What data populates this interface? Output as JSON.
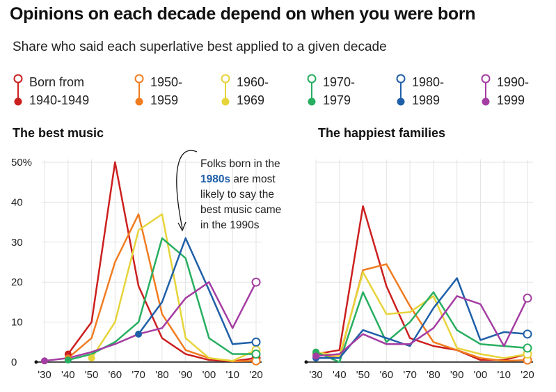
{
  "title": "Opinions on each decade depend on when you were born",
  "subtitle": "Share who said each superlative best applied to a given decade",
  "legend": [
    {
      "label": "Born from\n1940-1949",
      "color": "#cc1f1f"
    },
    {
      "label": "1950-\n1959",
      "color": "#f07c21"
    },
    {
      "label": "1960-\n1969",
      "color": "#e6d43a"
    },
    {
      "label": "1970-\n1979",
      "color": "#27ae60"
    },
    {
      "label": "1980-\n1989",
      "color": "#1f5fa8"
    },
    {
      "label": "1990-\n1999",
      "color": "#a43da3"
    }
  ],
  "annotation": {
    "line1": "Folks born in the",
    "highlight": "1980s",
    "line2_rest": " are most",
    "line3": "likely to say the",
    "line4": "best music came",
    "line5": "in the 1990s"
  },
  "chart_data": [
    {
      "type": "line",
      "title": "The best music",
      "x": [
        "'30",
        "'40",
        "'50",
        "'60",
        "'70",
        "'80",
        "'90",
        "'00",
        "'10",
        "'20"
      ],
      "y_ticks": [
        "50%",
        "40",
        "30",
        "20",
        "10",
        "0"
      ],
      "ylim": [
        0,
        50
      ],
      "series": [
        {
          "name": "Born from 1940-1949",
          "values": [
            null,
            2,
            10,
            50,
            19,
            6,
            2,
            0.5,
            0.2,
            1
          ]
        },
        {
          "name": "1950-1959",
          "values": [
            null,
            1,
            6,
            25,
            37,
            12,
            3,
            1,
            0.2,
            0.3
          ]
        },
        {
          "name": "1960-1969",
          "values": [
            null,
            null,
            1,
            10,
            33,
            37,
            6,
            1,
            0.3,
            3
          ]
        },
        {
          "name": "1970-1979",
          "values": [
            null,
            0.5,
            2,
            5,
            10,
            31,
            26,
            6,
            2,
            2
          ]
        },
        {
          "name": "1980-1989",
          "values": [
            null,
            null,
            null,
            null,
            7,
            15,
            31,
            18,
            4.5,
            5
          ]
        },
        {
          "name": "1990-1999",
          "values": [
            0.3,
            1,
            2.5,
            4.5,
            7,
            8.5,
            16,
            20,
            8.5,
            20
          ]
        }
      ]
    },
    {
      "type": "line",
      "title": "The happiest families",
      "x": [
        "'30",
        "'40",
        "'50",
        "'60",
        "'70",
        "'80",
        "'90",
        "'00",
        "'10",
        "'20"
      ],
      "ylim": [
        0,
        50
      ],
      "series": [
        {
          "name": "Born from 1940-1949",
          "values": [
            2,
            3,
            39,
            19,
            6,
            4,
            3,
            0.5,
            0.5,
            2
          ]
        },
        {
          "name": "1950-1959",
          "values": [
            2,
            1,
            23,
            24.5,
            14,
            5,
            3,
            1,
            0.3,
            0.5
          ]
        },
        {
          "name": "1960-1969",
          "values": [
            2.5,
            1.5,
            22.5,
            12,
            12.5,
            16.5,
            3.5,
            2,
            1,
            2
          ]
        },
        {
          "name": "1970-1979",
          "values": [
            2.5,
            0,
            17.5,
            5,
            10,
            17.5,
            8,
            4.5,
            4,
            3.5
          ]
        },
        {
          "name": "1980-1989",
          "values": [
            1,
            1,
            8,
            6,
            4,
            13.5,
            21,
            5.5,
            7.5,
            7
          ]
        },
        {
          "name": "1990-1999",
          "values": [
            1.5,
            2,
            7,
            4.5,
            4.5,
            8.5,
            16.5,
            14.5,
            4,
            16
          ]
        }
      ]
    }
  ]
}
